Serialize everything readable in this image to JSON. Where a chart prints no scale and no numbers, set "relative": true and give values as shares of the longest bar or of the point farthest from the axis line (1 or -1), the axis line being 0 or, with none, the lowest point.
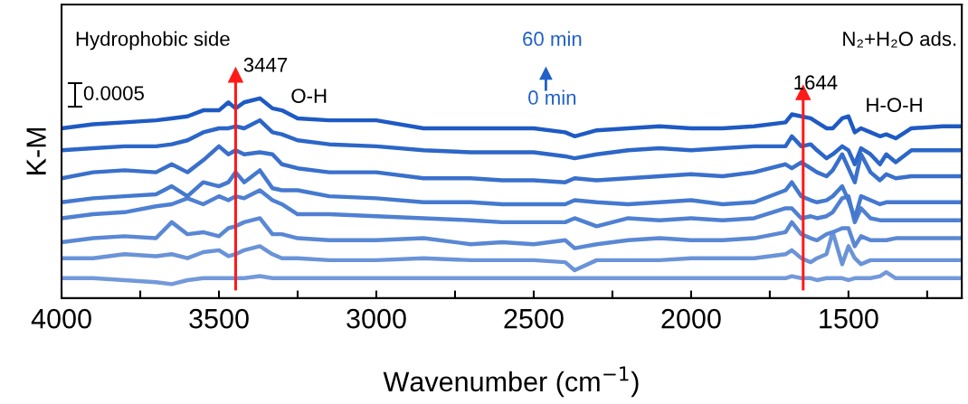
{
  "chart_data": {
    "type": "line",
    "relative": true,
    "xlabel": "Wavenumber (cm$^{−1}$)",
    "ylabel": "K-M",
    "x": [
      4000,
      3900,
      3800,
      3700,
      3650,
      3600,
      3550,
      3500,
      3470,
      3447,
      3420,
      3370,
      3330,
      3300,
      3250,
      3150,
      3000,
      2850,
      2700,
      2600,
      2500,
      2400,
      2370,
      2300,
      2200,
      2100,
      2000,
      1900,
      1800,
      1700,
      1680,
      1650,
      1620,
      1600,
      1570,
      1550,
      1520,
      1500,
      1480,
      1460,
      1430,
      1400,
      1380,
      1350,
      1300,
      1200,
      1140
    ],
    "xlim": [
      4000,
      1140
    ],
    "xticks": [
      4000,
      {
        "value": 3750,
        "label": null
      },
      3500,
      {
        "value": 3250,
        "label": null
      },
      3000,
      {
        "value": 2750,
        "label": null
      },
      2500,
      {
        "value": 2250,
        "label": null
      },
      2000,
      {
        "value": 1750,
        "label": null
      },
      1500,
      {
        "value": 1250,
        "label": null
      }
    ],
    "series": [
      {
        "color": "#7399da",
        "values": [
          0.1,
          0.1,
          0.09,
          0.08,
          0.07,
          0.09,
          0.1,
          0.1,
          0.1,
          0.1,
          0.1,
          0.11,
          0.1,
          0.1,
          0.1,
          0.1,
          0.1,
          0.1,
          0.1,
          0.1,
          0.1,
          0.1,
          0.1,
          0.1,
          0.1,
          0.1,
          0.1,
          0.1,
          0.1,
          0.1,
          0.11,
          0.1,
          0.1,
          0.09,
          0.1,
          0.1,
          0.1,
          0.09,
          0.1,
          0.1,
          0.1,
          0.11,
          0.13,
          0.1,
          0.1,
          0.1,
          0.1
        ]
      },
      {
        "color": "#6a93d8",
        "values": [
          0.2,
          0.2,
          0.22,
          0.21,
          0.22,
          0.2,
          0.23,
          0.24,
          0.21,
          0.22,
          0.24,
          0.26,
          0.22,
          0.2,
          0.2,
          0.19,
          0.19,
          0.2,
          0.19,
          0.19,
          0.19,
          0.18,
          0.14,
          0.19,
          0.19,
          0.19,
          0.2,
          0.2,
          0.2,
          0.22,
          0.24,
          0.2,
          0.18,
          0.2,
          0.22,
          0.33,
          0.17,
          0.26,
          0.2,
          0.17,
          0.19,
          0.19,
          0.19,
          0.19,
          0.19,
          0.19,
          0.19
        ]
      },
      {
        "color": "#5a88d4",
        "values": [
          0.28,
          0.3,
          0.31,
          0.3,
          0.38,
          0.32,
          0.33,
          0.31,
          0.35,
          0.36,
          0.38,
          0.4,
          0.32,
          0.32,
          0.3,
          0.29,
          0.29,
          0.3,
          0.27,
          0.28,
          0.27,
          0.29,
          0.25,
          0.27,
          0.29,
          0.3,
          0.29,
          0.29,
          0.3,
          0.33,
          0.38,
          0.32,
          0.3,
          0.29,
          0.32,
          0.33,
          0.35,
          0.35,
          0.26,
          0.31,
          0.29,
          0.29,
          0.29,
          0.3,
          0.3,
          0.3,
          0.3
        ]
      },
      {
        "color": "#4f80d2",
        "values": [
          0.4,
          0.42,
          0.43,
          0.46,
          0.47,
          0.5,
          0.47,
          0.51,
          0.49,
          0.51,
          0.5,
          0.54,
          0.49,
          0.47,
          0.42,
          0.42,
          0.41,
          0.4,
          0.39,
          0.38,
          0.38,
          0.38,
          0.4,
          0.36,
          0.4,
          0.39,
          0.4,
          0.39,
          0.4,
          0.45,
          0.45,
          0.4,
          0.41,
          0.4,
          0.41,
          0.43,
          0.5,
          0.51,
          0.38,
          0.45,
          0.4,
          0.39,
          0.39,
          0.39,
          0.39,
          0.39,
          0.39
        ]
      },
      {
        "color": "#4479cf",
        "values": [
          0.48,
          0.5,
          0.51,
          0.52,
          0.56,
          0.51,
          0.58,
          0.56,
          0.58,
          0.63,
          0.58,
          0.64,
          0.55,
          0.54,
          0.54,
          0.51,
          0.5,
          0.48,
          0.48,
          0.47,
          0.47,
          0.47,
          0.49,
          0.48,
          0.47,
          0.48,
          0.49,
          0.47,
          0.48,
          0.54,
          0.58,
          0.51,
          0.49,
          0.48,
          0.49,
          0.51,
          0.56,
          0.49,
          0.4,
          0.51,
          0.49,
          0.47,
          0.48,
          0.48,
          0.48,
          0.48,
          0.48
        ]
      },
      {
        "color": "#3a70cc",
        "values": [
          0.6,
          0.63,
          0.64,
          0.63,
          0.67,
          0.63,
          0.69,
          0.76,
          0.72,
          0.74,
          0.72,
          0.73,
          0.72,
          0.67,
          0.65,
          0.63,
          0.63,
          0.6,
          0.6,
          0.59,
          0.59,
          0.58,
          0.6,
          0.59,
          0.6,
          0.61,
          0.62,
          0.61,
          0.63,
          0.67,
          0.65,
          0.68,
          0.65,
          0.63,
          0.61,
          0.64,
          0.72,
          0.65,
          0.58,
          0.72,
          0.63,
          0.59,
          0.62,
          0.6,
          0.61,
          0.61,
          0.61
        ]
      },
      {
        "color": "#2c66c8",
        "values": [
          0.74,
          0.75,
          0.76,
          0.76,
          0.77,
          0.79,
          0.83,
          0.85,
          0.85,
          0.86,
          0.85,
          0.89,
          0.83,
          0.82,
          0.79,
          0.77,
          0.76,
          0.74,
          0.73,
          0.73,
          0.73,
          0.71,
          0.7,
          0.72,
          0.74,
          0.75,
          0.74,
          0.75,
          0.76,
          0.76,
          0.81,
          0.76,
          0.77,
          0.74,
          0.7,
          0.72,
          0.76,
          0.74,
          0.67,
          0.75,
          0.72,
          0.67,
          0.72,
          0.68,
          0.74,
          0.74,
          0.74
        ]
      },
      {
        "color": "#1f5ac4",
        "values": [
          0.85,
          0.87,
          0.88,
          0.89,
          0.9,
          0.91,
          0.94,
          0.94,
          0.98,
          0.95,
          0.98,
          1.0,
          0.95,
          0.94,
          0.9,
          0.89,
          0.89,
          0.85,
          0.85,
          0.85,
          0.85,
          0.83,
          0.81,
          0.84,
          0.85,
          0.86,
          0.85,
          0.85,
          0.86,
          0.88,
          0.92,
          0.91,
          0.9,
          0.88,
          0.85,
          0.85,
          0.9,
          0.91,
          0.83,
          0.85,
          0.83,
          0.81,
          0.82,
          0.8,
          0.85,
          0.86,
          0.86
        ]
      }
    ],
    "ref_lines": [
      {
        "axis": "x",
        "value": 3447,
        "label": "3447",
        "color": "#ff1a1a"
      },
      {
        "axis": "x",
        "value": 1644,
        "label": "1644",
        "color": "#ff1a1a"
      }
    ],
    "annotations": [
      "Hydrophobic side",
      "N₂+H₂O ads.",
      "60 min",
      "0 min",
      "O-H",
      "H-O-H",
      "0.0005"
    ],
    "grid": false,
    "legend": false
  }
}
